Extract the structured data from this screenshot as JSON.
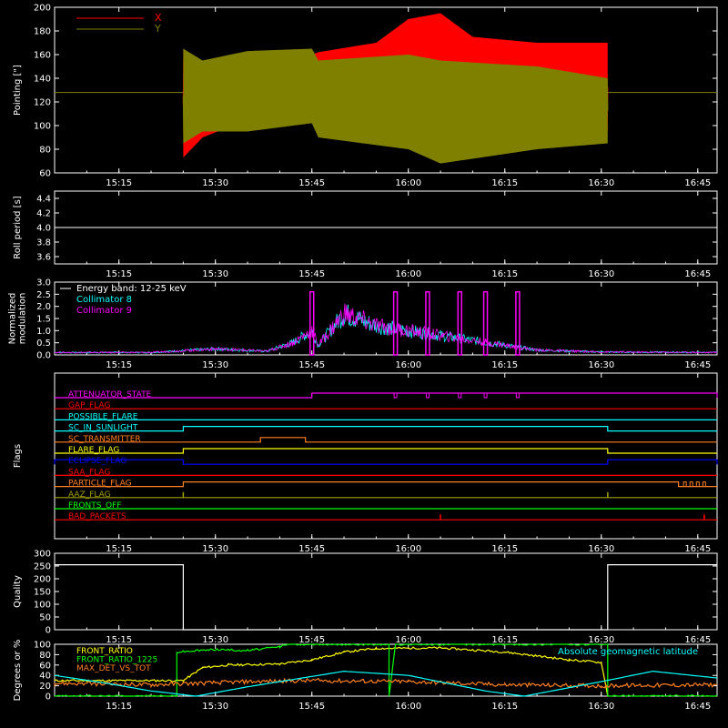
{
  "colors": {
    "background": "#000000",
    "axes": "#ffffff",
    "x": "#ff0000",
    "y": "#808000",
    "cyan": "#00ffff",
    "magenta": "#ff00ff",
    "red": "#ff0000",
    "green": "#00ff00",
    "yellow": "#ffff00",
    "orange": "#ff8020",
    "blue": "#0000ff",
    "olive": "#a0a000"
  },
  "chart_data": [
    {
      "type": "line",
      "name": "pointing",
      "ylabel": "Pointing [\"]",
      "ylim": [
        60,
        200
      ],
      "yticks": [
        "60",
        "80",
        "100",
        "120",
        "140",
        "160",
        "180",
        "200"
      ],
      "xlim": [
        "15:05",
        "16:48"
      ],
      "xticks": [
        "15:15",
        "15:30",
        "15:45",
        "16:00",
        "16:15",
        "16:30",
        "16:45"
      ],
      "legend": "top-left",
      "series": [
        {
          "name": "X",
          "color": "#ff0000",
          "envelope": [
            [
              "15:25",
              73,
              165
            ],
            [
              "15:28",
              90,
              148
            ],
            [
              "15:35",
              105,
              155
            ],
            [
              "15:45",
              117,
              160
            ],
            [
              "15:46",
              100,
              162
            ],
            [
              "15:55",
              100,
              170
            ],
            [
              "16:00",
              95,
              190
            ],
            [
              "16:05",
              90,
              195
            ],
            [
              "16:10",
              100,
              175
            ],
            [
              "16:20",
              95,
              170
            ],
            [
              "16:31",
              95,
              170
            ]
          ]
        },
        {
          "name": "Y",
          "color": "#808000",
          "envelope": [
            [
              "15:25",
              85,
              165
            ],
            [
              "15:28",
              95,
              155
            ],
            [
              "15:35",
              95,
              163
            ],
            [
              "15:45",
              102,
              165
            ],
            [
              "15:46",
              90,
              155
            ],
            [
              "16:00",
              80,
              160
            ],
            [
              "16:05",
              68,
              155
            ],
            [
              "16:20",
              80,
              150
            ],
            [
              "16:31",
              85,
              140
            ]
          ],
          "baseline": 128
        }
      ]
    },
    {
      "type": "line",
      "name": "roll-period",
      "ylabel": "Roll period [s]",
      "ylim": [
        3.5,
        4.5
      ],
      "yticks": [
        "3.6",
        "3.8",
        "4.0",
        "4.2",
        "4.4"
      ],
      "xticks": [
        "15:15",
        "15:30",
        "15:45",
        "16:00",
        "16:15",
        "16:30",
        "16:45"
      ],
      "series": [
        {
          "values": [
            4.0
          ],
          "color": "#ffffff"
        }
      ]
    },
    {
      "type": "line",
      "name": "modulation",
      "ylabel": "Normalized modulation",
      "ylim": [
        0,
        3
      ],
      "yticks": [
        "0.0",
        "0.5",
        "1.0",
        "1.5",
        "2.0",
        "2.5",
        "3.0"
      ],
      "xticks": [
        "15:15",
        "15:30",
        "15:45",
        "16:00",
        "16:15",
        "16:30",
        "16:45"
      ],
      "legend": "top-left",
      "legend_title": "Energy band: 12-25 keV",
      "series": [
        {
          "name": "Collimator 8",
          "color": "#00ffff"
        },
        {
          "name": "Collimator 9",
          "color": "#ff00ff"
        }
      ],
      "profile": [
        [
          "15:05",
          0.1
        ],
        [
          "15:20",
          0.1
        ],
        [
          "15:30",
          0.25
        ],
        [
          "15:38",
          0.15
        ],
        [
          "15:42",
          0.5
        ],
        [
          "15:45",
          1.0
        ],
        [
          "15:46",
          0.4
        ],
        [
          "15:50",
          1.7
        ],
        [
          "15:55",
          1.2
        ],
        [
          "16:00",
          1.0
        ],
        [
          "16:10",
          0.6
        ],
        [
          "16:20",
          0.2
        ],
        [
          "16:30",
          0.12
        ],
        [
          "16:48",
          0.1
        ]
      ],
      "spikes": [
        "15:45",
        "15:58",
        "16:03",
        "16:08",
        "16:12",
        "16:17"
      ]
    },
    {
      "type": "table",
      "name": "flags",
      "ylabel": "Flags",
      "xticks": [
        "15:15",
        "15:30",
        "15:45",
        "16:00",
        "16:15",
        "16:30",
        "16:45"
      ],
      "rows": [
        {
          "label": "ATTENUATOR_STATE",
          "color": "#ff00ff",
          "on": [
            [
              "15:45",
              "16:48"
            ]
          ],
          "dips": [
            "15:58",
            "16:03",
            "16:08",
            "16:12",
            "16:17"
          ]
        },
        {
          "label": "GAP_FLAG",
          "color": "#ff0000",
          "on": []
        },
        {
          "label": "POSSIBLE_FLARE",
          "color": "#00ffff",
          "on": []
        },
        {
          "label": "SC_IN_SUNLIGHT",
          "color": "#00ffff",
          "on": [
            [
              "15:25",
              "16:31"
            ]
          ]
        },
        {
          "label": "SC_TRANSMITTER",
          "color": "#ff8020",
          "on": [
            [
              "15:37",
              "15:44"
            ]
          ]
        },
        {
          "label": "FLARE_FLAG",
          "color": "#ffff00",
          "on": [
            [
              "15:25",
              "16:31"
            ]
          ]
        },
        {
          "label": "ECLIPSE_FLAG",
          "color": "#0000ff",
          "on": [
            [
              "15:05",
              "15:25"
            ],
            [
              "16:31",
              "16:48"
            ]
          ]
        },
        {
          "label": "SAA_FLAG",
          "color": "#ff0000",
          "on": []
        },
        {
          "label": "PARTICLE_FLAG",
          "color": "#ff8020",
          "on": [
            [
              "15:25",
              "16:42"
            ]
          ],
          "dips": [
            "16:43",
            "16:44",
            "16:45",
            "16:46"
          ]
        },
        {
          "label": "AAZ_FLAG",
          "color": "#a0a000",
          "on": [],
          "blips": [
            "15:25",
            "16:31"
          ]
        },
        {
          "label": "FRONTS_OFF",
          "color": "#00ff00",
          "on": []
        },
        {
          "label": "BAD_PACKETS",
          "color": "#ff0000",
          "on": [],
          "blips": [
            "16:05",
            "16:46"
          ]
        }
      ]
    },
    {
      "type": "line",
      "name": "quality",
      "ylabel": "Quality",
      "ylim": [
        0,
        300
      ],
      "yticks": [
        "0",
        "50",
        "100",
        "150",
        "200",
        "250",
        "300"
      ],
      "xticks": [
        "15:15",
        "15:30",
        "15:45",
        "16:00",
        "16:15",
        "16:30",
        "16:45"
      ],
      "series": [
        {
          "color": "#ffffff",
          "points": [
            [
              "15:05",
              255
            ],
            [
              "15:25",
              255
            ],
            [
              "15:25",
              0
            ],
            [
              "16:31",
              0
            ],
            [
              "16:31",
              255
            ],
            [
              "16:48",
              255
            ]
          ]
        }
      ]
    },
    {
      "type": "line",
      "name": "ratios",
      "ylabel": "Degrees or %",
      "ylim": [
        0,
        100
      ],
      "yticks": [
        "0",
        "20",
        "40",
        "60",
        "80",
        "100"
      ],
      "xticks": [
        "15:15",
        "15:30",
        "15:45",
        "16:00",
        "16:15",
        "16:30",
        "16:45"
      ],
      "legend": "top-left",
      "annotation": "Absolute geomagnetic latitude",
      "series": [
        {
          "name": "FRONT_RATIO",
          "color": "#ffff00",
          "points": [
            [
              "15:05",
              30
            ],
            [
              "15:25",
              30
            ],
            [
              "15:28",
              55
            ],
            [
              "15:32",
              60
            ],
            [
              "15:40",
              62
            ],
            [
              "15:45",
              70
            ],
            [
              "15:50",
              85
            ],
            [
              "15:55",
              92
            ],
            [
              "16:05",
              93
            ],
            [
              "16:15",
              85
            ],
            [
              "16:25",
              70
            ],
            [
              "16:30",
              65
            ],
            [
              "16:31",
              0
            ]
          ]
        },
        {
          "name": "FRONT_RATIO_1225",
          "color": "#00ff00",
          "points": [
            [
              "15:05",
              0
            ],
            [
              "15:24",
              0
            ],
            [
              "15:24",
              85
            ],
            [
              "15:30",
              90
            ],
            [
              "15:35",
              88
            ],
            [
              "15:40",
              95
            ],
            [
              "15:41",
              100
            ],
            [
              "15:57",
              100
            ],
            [
              "15:57",
              0
            ],
            [
              "15:58",
              100
            ],
            [
              "16:31",
              100
            ],
            [
              "16:31",
              0
            ],
            [
              "16:48",
              0
            ]
          ]
        },
        {
          "name": "MAX_DET_VS_TOT",
          "color": "#ff8020",
          "points": [
            [
              "15:05",
              25
            ],
            [
              "15:20",
              22
            ],
            [
              "15:35",
              28
            ],
            [
              "15:45",
              30
            ],
            [
              "16:00",
              28
            ],
            [
              "16:15",
              22
            ],
            [
              "16:30",
              20
            ],
            [
              "16:48",
              22
            ]
          ]
        },
        {
          "name": "",
          "color": "#00ffff",
          "points": [
            [
              "15:05",
              40
            ],
            [
              "15:13",
              25
            ],
            [
              "15:20",
              10
            ],
            [
              "15:27",
              0
            ],
            [
              "15:35",
              18
            ],
            [
              "15:50",
              48
            ],
            [
              "16:00",
              40
            ],
            [
              "16:12",
              10
            ],
            [
              "16:18",
              0
            ],
            [
              "16:30",
              28
            ],
            [
              "16:38",
              48
            ],
            [
              "16:48",
              35
            ]
          ]
        }
      ]
    }
  ]
}
